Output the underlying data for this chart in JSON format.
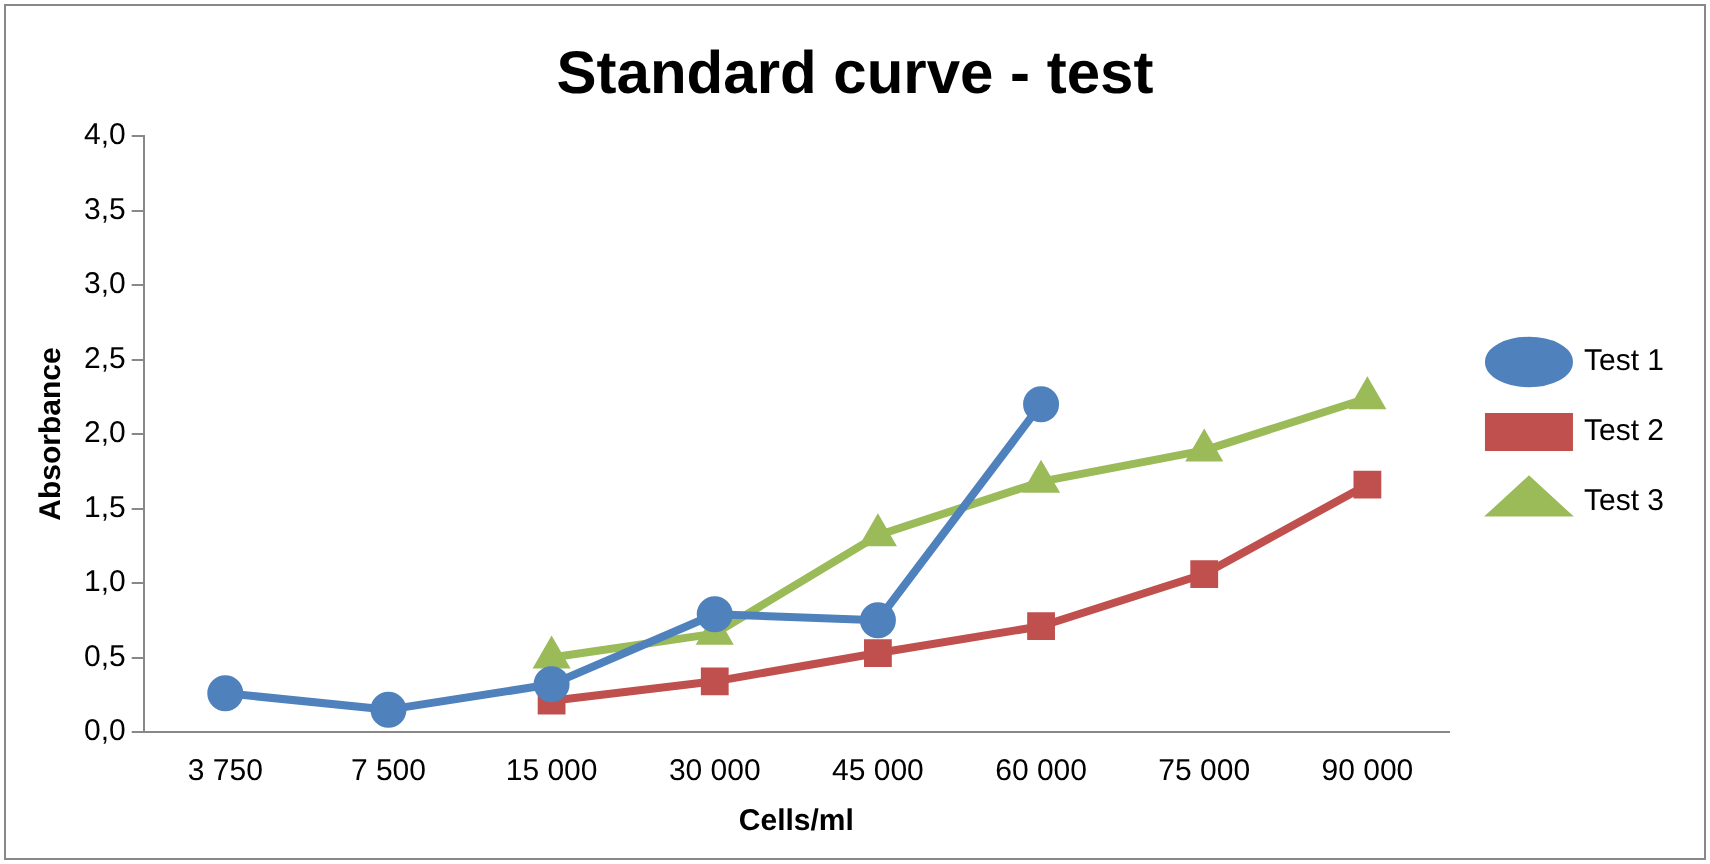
{
  "chart_data": {
    "type": "line",
    "title": "Standard curve - test",
    "xlabel": "Cells/ml",
    "ylabel": "Absorbance",
    "categories": [
      "3 750",
      "7 500",
      "15 000",
      "30 000",
      "45 000",
      "60 000",
      "75 000",
      "90 000"
    ],
    "series": [
      {
        "name": "Test 1",
        "color": "#4f81bd",
        "marker": "circle",
        "values": [
          0.26,
          0.15,
          0.32,
          0.79,
          0.75,
          2.2,
          null,
          null
        ]
      },
      {
        "name": "Test 2",
        "color": "#c0504d",
        "marker": "square",
        "values": [
          null,
          null,
          0.21,
          0.34,
          0.53,
          0.71,
          1.06,
          1.66
        ]
      },
      {
        "name": "Test 3",
        "color": "#9bbb59",
        "marker": "triangle",
        "values": [
          null,
          null,
          0.5,
          0.66,
          1.32,
          1.68,
          1.89,
          2.24
        ]
      }
    ],
    "ylim": [
      0,
      4
    ],
    "yticks": [
      {
        "value": 0,
        "label": "0,0"
      },
      {
        "value": 0.5,
        "label": "0,5"
      },
      {
        "value": 1,
        "label": "1,0"
      },
      {
        "value": 1.5,
        "label": "1,5"
      },
      {
        "value": 2,
        "label": "2,0"
      },
      {
        "value": 2.5,
        "label": "2,5"
      },
      {
        "value": 3,
        "label": "3,0"
      },
      {
        "value": 3.5,
        "label": "3,5"
      },
      {
        "value": 4,
        "label": "4,0"
      }
    ],
    "grid": false,
    "legend": "right"
  }
}
